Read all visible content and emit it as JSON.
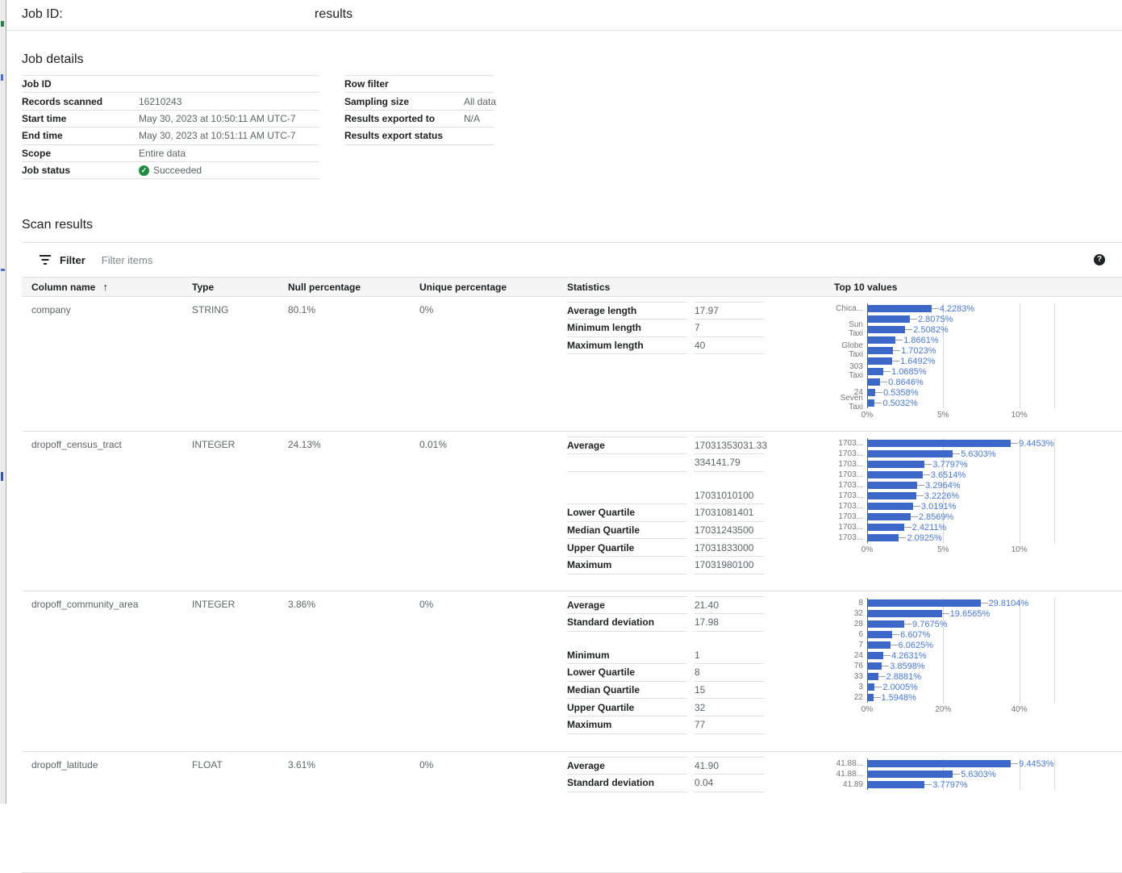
{
  "header": {
    "job_id_label": "Job ID:",
    "title": "results"
  },
  "job_details": {
    "heading": "Job details",
    "left_rows": [
      {
        "label": "Job ID",
        "value": ""
      },
      {
        "label": "Records scanned",
        "value": "16210243"
      },
      {
        "label": "Start time",
        "value": "May 30, 2023 at 10:50:11 AM UTC-7"
      },
      {
        "label": "End time",
        "value": "May 30, 2023 at 10:51:11 AM UTC-7"
      },
      {
        "label": "Scope",
        "value": "Entire data"
      },
      {
        "label": "Job status",
        "value": "Succeeded",
        "status_icon": "check-circle-green"
      }
    ],
    "right_rows": [
      {
        "label": "Row filter",
        "value": ""
      },
      {
        "label": "Sampling size",
        "value": "All data"
      },
      {
        "label": "Results exported to",
        "value": "N/A"
      },
      {
        "label": "Results export status",
        "value": ""
      }
    ]
  },
  "scan_results": {
    "heading": "Scan results",
    "filter_label": "Filter",
    "filter_placeholder": "Filter items",
    "help_icon_glyph": "?",
    "sort_icon_glyph": "↑",
    "columns": [
      "Column name",
      "Type",
      "Null percentage",
      "Unique percentage",
      "Statistics",
      "Top 10 values"
    ],
    "rows": [
      {
        "column_name": "company",
        "type": "STRING",
        "null_percentage": "80.1%",
        "unique_percentage": "0%",
        "statistics": [
          {
            "label": "Average length",
            "value": "17.97"
          },
          {
            "label": "Minimum length",
            "value": "7"
          },
          {
            "label": "Maximum length",
            "value": "40"
          }
        ]
      },
      {
        "column_name": "dropoff_census_tract",
        "type": "INTEGER",
        "null_percentage": "24.13%",
        "unique_percentage": "0.01%",
        "statistics": [
          {
            "label": "Average",
            "value": "17031353031.33"
          },
          {
            "label": "",
            "value": "334141.79"
          },
          {
            "spacer": true
          },
          {
            "label": "",
            "value": "17031010100"
          },
          {
            "label": "Lower Quartile",
            "value": "17031081401"
          },
          {
            "label": "Median Quartile",
            "value": "17031243500"
          },
          {
            "label": "Upper Quartile",
            "value": "17031833000"
          },
          {
            "label": "Maximum",
            "value": "17031980100"
          }
        ]
      },
      {
        "column_name": "dropoff_community_area",
        "type": "INTEGER",
        "null_percentage": "3.86%",
        "unique_percentage": "0%",
        "statistics": [
          {
            "label": "Average",
            "value": "21.40"
          },
          {
            "label": "Standard deviation",
            "value": "17.98"
          },
          {
            "spacer": true
          },
          {
            "label": "Minimum",
            "value": "1"
          },
          {
            "label": "Lower Quartile",
            "value": "8"
          },
          {
            "label": "Median Quartile",
            "value": "15"
          },
          {
            "label": "Upper Quartile",
            "value": "32"
          },
          {
            "label": "Maximum",
            "value": "77"
          }
        ]
      },
      {
        "column_name": "dropoff_latitude",
        "type": "FLOAT",
        "null_percentage": "3.61%",
        "unique_percentage": "0%",
        "statistics": [
          {
            "label": "Average",
            "value": "41.90"
          },
          {
            "label": "Standard deviation",
            "value": "0.04"
          }
        ]
      }
    ]
  },
  "chart_data": [
    {
      "type": "bar",
      "orientation": "horizontal",
      "column": "company",
      "categories": [
        "Chica...",
        "",
        "Sun\nTaxi",
        "",
        "Globe\nTaxi",
        "",
        "303\nTaxi",
        "",
        "24",
        "Seven\nTaxi"
      ],
      "values": [
        4.2283,
        2.8075,
        2.5082,
        1.8661,
        1.7023,
        1.6492,
        1.0685,
        0.8646,
        0.5358,
        0.5032
      ],
      "value_suffix": "%",
      "ticks": [
        {
          "label": "0%",
          "v": 0
        },
        {
          "label": "5%",
          "v": 5
        },
        {
          "label": "10%",
          "v": 10
        }
      ],
      "xlim": [
        0,
        12.3
      ],
      "grid": true,
      "bar_color": "#3b68c9",
      "annotation_color": "#4677e0"
    },
    {
      "type": "bar",
      "orientation": "horizontal",
      "column": "dropoff_census_tract",
      "categories": [
        "1703...",
        "1703...",
        "1703...",
        "1703...",
        "1703...",
        "1703...",
        "1703...",
        "1703...",
        "1703...",
        "1703..."
      ],
      "values": [
        9.4453,
        5.6303,
        3.7797,
        3.6514,
        3.2964,
        3.2226,
        3.0191,
        2.8569,
        2.4211,
        2.0925
      ],
      "value_suffix": "%",
      "ticks": [
        {
          "label": "0%",
          "v": 0
        },
        {
          "label": "5%",
          "v": 5
        },
        {
          "label": "10%",
          "v": 10
        }
      ],
      "xlim": [
        0,
        12.3
      ],
      "grid": true,
      "bar_color": "#3b68c9",
      "annotation_color": "#4677e0"
    },
    {
      "type": "bar",
      "orientation": "horizontal",
      "column": "dropoff_community_area",
      "categories": [
        "8",
        "32",
        "28",
        "6",
        "7",
        "24",
        "76",
        "33",
        "3",
        "22"
      ],
      "values": [
        29.8104,
        19.6565,
        9.7675,
        6.607,
        6.0625,
        4.2631,
        3.8598,
        2.8881,
        2.0005,
        1.5948
      ],
      "value_suffix": "%",
      "ticks": [
        {
          "label": "0%",
          "v": 0
        },
        {
          "label": "20%",
          "v": 20
        },
        {
          "label": "40%",
          "v": 40
        }
      ],
      "xlim": [
        0,
        49.2
      ],
      "grid": true,
      "bar_color": "#3b68c9",
      "annotation_color": "#4677e0"
    },
    {
      "type": "bar",
      "orientation": "horizontal",
      "column": "dropoff_latitude",
      "categories": [
        "41.88...",
        "41.88...",
        "41.89"
      ],
      "values": [
        9.4453,
        5.6303,
        3.7797
      ],
      "value_suffix": "%",
      "ticks": [
        {
          "label": "",
          "v": 0
        },
        {
          "label": "",
          "v": 5
        },
        {
          "label": "",
          "v": 10
        }
      ],
      "xlim": [
        0,
        12.3
      ],
      "grid": true,
      "bar_color": "#3b68c9",
      "annotation_color": "#4677e0"
    }
  ]
}
